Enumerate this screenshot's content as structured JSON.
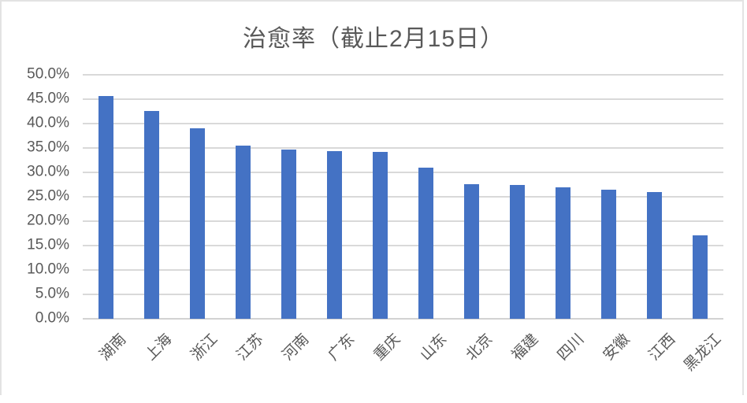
{
  "chart_data": {
    "type": "bar",
    "title": "治愈率（截止2月15日）",
    "categories": [
      "湖南",
      "上海",
      "浙江",
      "江苏",
      "河南",
      "广东",
      "重庆",
      "山东",
      "北京",
      "福建",
      "四川",
      "安徽",
      "江西",
      "黑龙江"
    ],
    "values": [
      45.7,
      42.6,
      39.0,
      35.5,
      34.6,
      34.4,
      34.2,
      31.0,
      27.6,
      27.4,
      27.0,
      26.5,
      25.9,
      17.1
    ],
    "unit": "%",
    "xlabel": "",
    "ylabel": "",
    "ylim": [
      0,
      50
    ],
    "y_tick_step": 5,
    "y_tick_labels": [
      "0.0%",
      "5.0%",
      "10.0%",
      "15.0%",
      "20.0%",
      "25.0%",
      "30.0%",
      "35.0%",
      "40.0%",
      "45.0%",
      "50.0%"
    ],
    "grid": true,
    "legend": "none",
    "bar_color": "#4472C4",
    "gridline_color": "#d9d9d9",
    "axis_line_color": "#d2d2d2",
    "text_color": "#595959",
    "frame_border_color": "#e3e3e3"
  }
}
